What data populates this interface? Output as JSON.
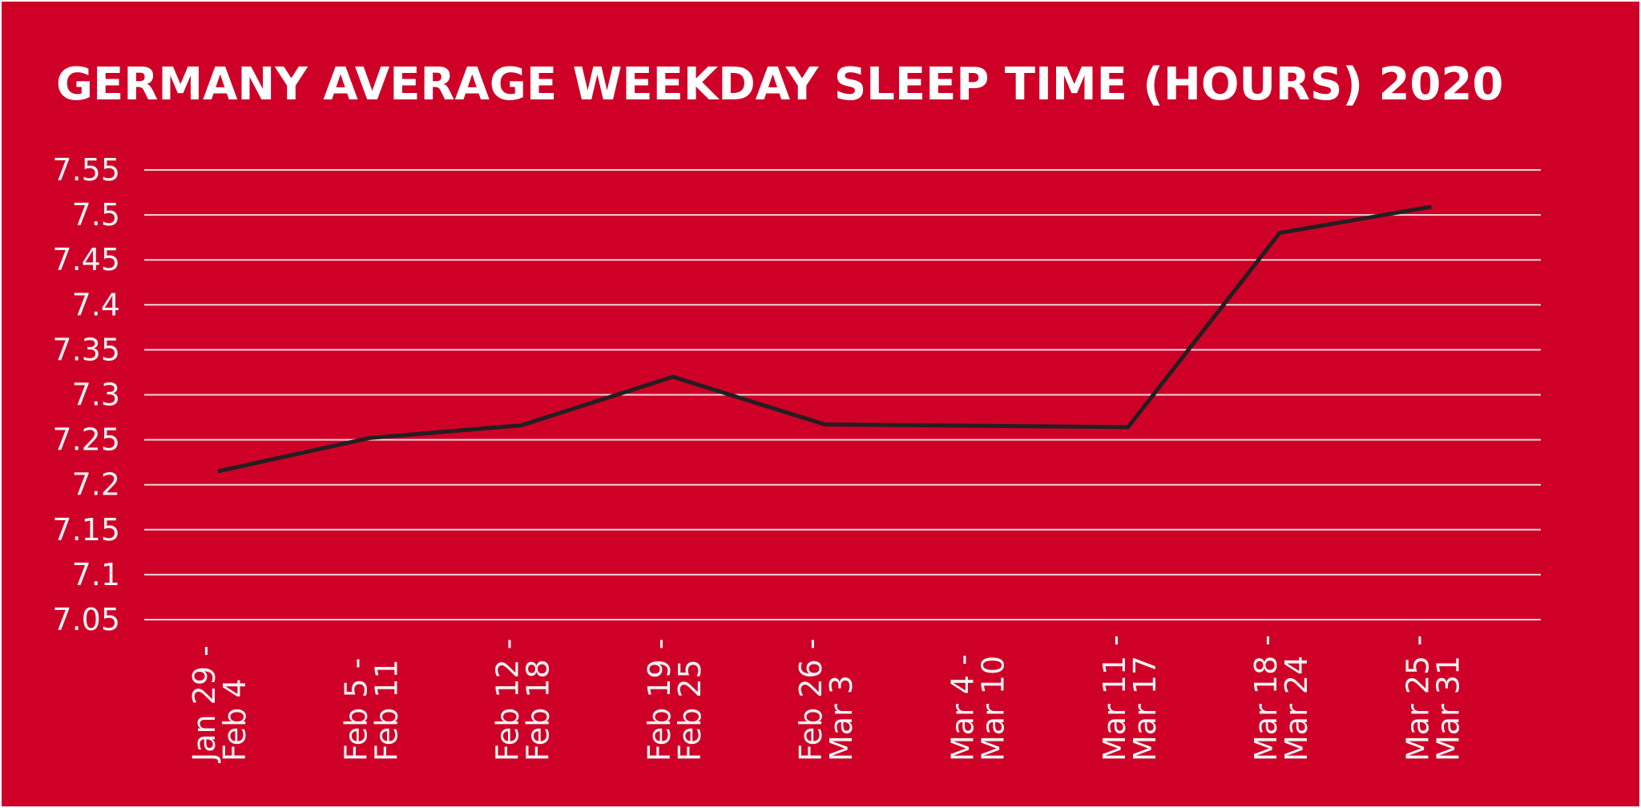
{
  "chart_data": {
    "type": "line",
    "title": "GERMANY AVERAGE WEEKDAY SLEEP TIME (HOURS) 2020",
    "xlabel": "",
    "ylabel": "",
    "categories": [
      [
        "Jan 29 -",
        "Feb 4"
      ],
      [
        "Feb 5 -",
        "Feb 11"
      ],
      [
        "Feb 12 -",
        "Feb 18"
      ],
      [
        "Feb 19 -",
        "Feb 25"
      ],
      [
        "Feb 26 -",
        "Mar 3"
      ],
      [
        "Mar 4 -",
        "Mar 10"
      ],
      [
        "Mar 11 -",
        "Mar 17"
      ],
      [
        "Mar 18 -",
        "Mar 24"
      ],
      [
        "Mar 25 -",
        "Mar 31"
      ]
    ],
    "series": [
      {
        "values": [
          7.215,
          7.252,
          7.266,
          7.32,
          7.267,
          null,
          7.264,
          7.48,
          7.509
        ]
      }
    ],
    "yticks": [
      "7.55",
      "7.5",
      "7.45",
      "7.4",
      "7.35",
      "7.3",
      "7.25",
      "7.2",
      "7.15",
      "7.1",
      "7.05"
    ],
    "ylim": [
      7.05,
      7.55
    ],
    "grid": true,
    "legend": "none",
    "colors": {
      "background": "#cf0027",
      "line": "#231f20",
      "grid": "#f2d7dc",
      "text": "#ffffff"
    }
  }
}
